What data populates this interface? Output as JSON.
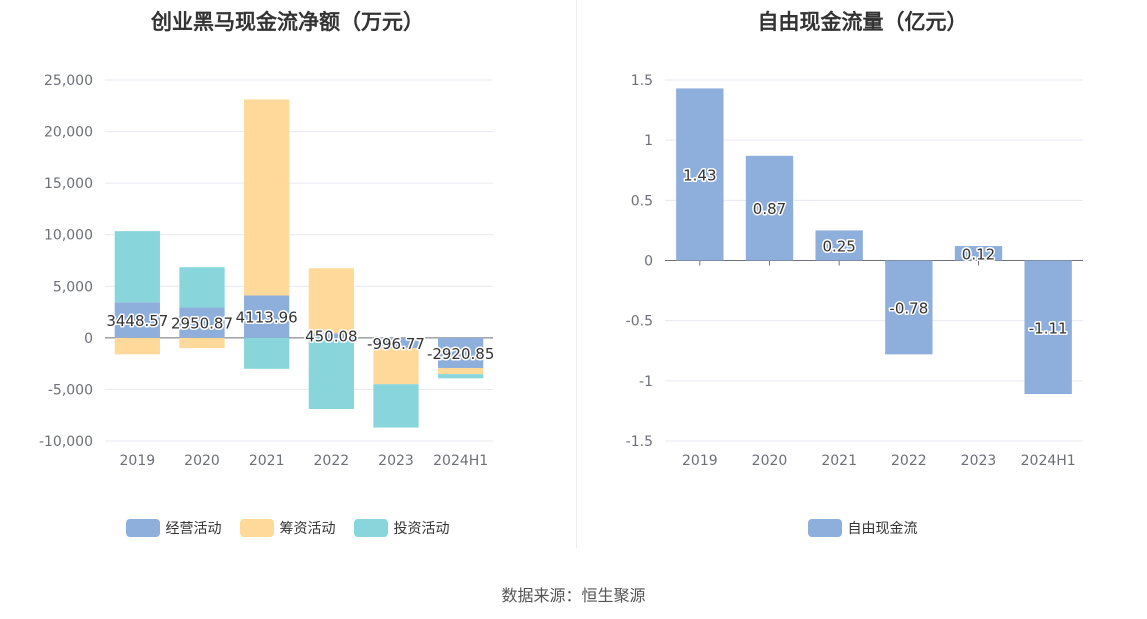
{
  "source_text": "数据来源：恒生聚源",
  "chart_data": [
    {
      "type": "bar",
      "stacked": true,
      "title": "创业黑马现金流净额（万元）",
      "categories": [
        "2019",
        "2020",
        "2021",
        "2022",
        "2023",
        "2024H1"
      ],
      "ylim": [
        -10000,
        25000
      ],
      "yticks": [
        25000,
        20000,
        15000,
        10000,
        5000,
        0,
        -5000,
        -10000
      ],
      "ytick_labels": [
        "25,000",
        "20,000",
        "15,000",
        "10,000",
        "5,000",
        "0",
        "-5,000",
        "-10,000"
      ],
      "grid": true,
      "legend_position": "bottom",
      "series": [
        {
          "name": "经营活动",
          "color": "#8eaedc",
          "values": [
            3448.57,
            2950.87,
            4113.96,
            450.08,
            -996.77,
            -2920.85
          ],
          "labels": [
            "3448.57",
            "2950.87",
            "4113.96",
            "450.08",
            "-996.77",
            "-2920.85"
          ]
        },
        {
          "name": "筹资活动",
          "color": "#ffd99a",
          "values": [
            -1600,
            -1000,
            19000,
            6300,
            -3500,
            -600
          ]
        },
        {
          "name": "投资活动",
          "color": "#88d6dc",
          "values": [
            6900,
            3900,
            -3000,
            -6900,
            -4200,
            -400
          ]
        }
      ]
    },
    {
      "type": "bar",
      "title": "自由现金流量（亿元）",
      "categories": [
        "2019",
        "2020",
        "2021",
        "2022",
        "2023",
        "2024H1"
      ],
      "ylim": [
        -1.5,
        1.5
      ],
      "yticks": [
        1.5,
        1,
        0.5,
        0,
        -0.5,
        -1,
        -1.5
      ],
      "ytick_labels": [
        "1.5",
        "1",
        "0.5",
        "0",
        "-0.5",
        "-1",
        "-1.5"
      ],
      "grid": true,
      "legend_position": "bottom",
      "series": [
        {
          "name": "自由现金流",
          "color": "#8eaedc",
          "values": [
            1.43,
            0.87,
            0.25,
            -0.78,
            0.12,
            -1.11
          ],
          "labels": [
            "1.43",
            "0.87",
            "0.25",
            "-0.78",
            "0.12",
            "-1.11"
          ]
        }
      ]
    }
  ]
}
